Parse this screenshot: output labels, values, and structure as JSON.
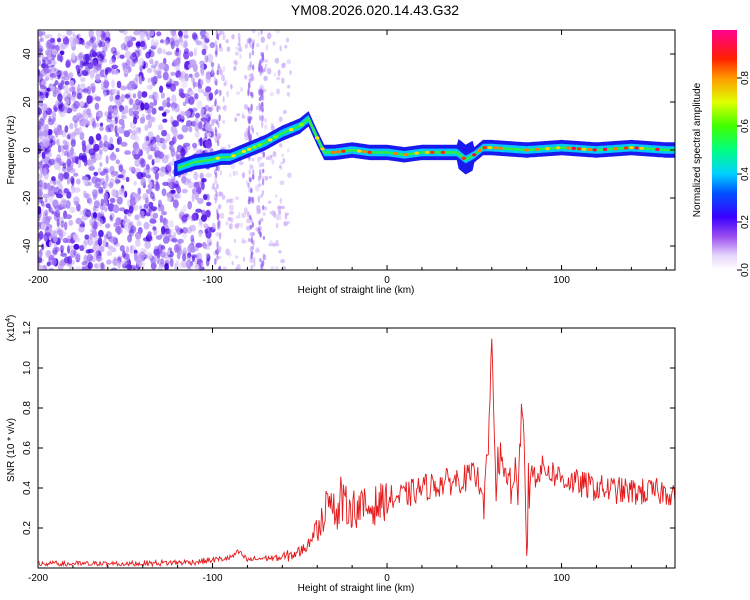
{
  "title": "YM08.2026.020.14.43.G32",
  "chart_data": [
    {
      "type": "heatmap",
      "name": "spectrogram",
      "xlabel": "Height of straight line (km)",
      "ylabel": "Frequency (Hz)",
      "xlim": [
        -200,
        165
      ],
      "ylim": [
        -50,
        50
      ],
      "x_ticks": [
        -200,
        -100,
        0,
        100
      ],
      "x_tick_labels": [
        "-200",
        "-100",
        "0",
        "100"
      ],
      "y_ticks": [
        -40,
        -20,
        0,
        20,
        40
      ],
      "y_tick_labels": [
        "-40",
        "-20",
        "0",
        "20",
        "40"
      ],
      "colorbar": {
        "label": "Normalized spectral amplitude",
        "range": [
          0,
          1
        ],
        "ticks": [
          0.0,
          0.2,
          0.4,
          0.6,
          0.8
        ],
        "tick_labels": [
          "0.0",
          "0.2",
          "0.4",
          "0.6",
          "0.8"
        ]
      },
      "ridge": {
        "x": [
          -122,
          -110,
          -100,
          -95,
          -90,
          -80,
          -70,
          -60,
          -50,
          -45,
          -40,
          -36,
          -30,
          -20,
          -10,
          0,
          10,
          20,
          30,
          40,
          45,
          50,
          55,
          60,
          80,
          100,
          120,
          140,
          160
        ],
        "freq": [
          -8,
          -5,
          -4,
          -3,
          -3,
          0,
          3,
          7,
          10,
          13,
          5,
          -1,
          -1,
          0,
          -1,
          -1,
          -2,
          -1,
          -1,
          -1,
          -4,
          -2,
          1,
          1,
          0,
          1,
          0,
          1,
          0
        ]
      }
    },
    {
      "type": "line",
      "name": "snr",
      "xlabel": "Height of straight line (km)",
      "ylabel": "SNR (10 * v/v)",
      "y_multiplier": "(x10",
      "y_multiplier_exp": "4",
      "y_multiplier_close": ")",
      "xlim": [
        -200,
        165
      ],
      "ylim": [
        0,
        1.2
      ],
      "x_ticks": [
        -200,
        -100,
        0,
        100
      ],
      "x_tick_labels": [
        "-200",
        "-100",
        "0",
        "100"
      ],
      "y_ticks": [
        0.2,
        0.4,
        0.6,
        0.8,
        1.0,
        1.2
      ],
      "y_tick_labels": [
        "0.2",
        "0.4",
        "0.6",
        "0.8",
        "1.0",
        "1.2"
      ],
      "series": [
        {
          "name": "SNR",
          "color": "#e41a1c",
          "x": [
            -200,
            -150,
            -110,
            -100,
            -90,
            -85,
            -80,
            -70,
            -60,
            -50,
            -45,
            -40,
            -35,
            -30,
            -25,
            -20,
            -10,
            0,
            10,
            20,
            30,
            40,
            50,
            55,
            58,
            60,
            62,
            65,
            70,
            75,
            78,
            80,
            82,
            90,
            100,
            110,
            120,
            140,
            160,
            165
          ],
          "y": [
            0.02,
            0.02,
            0.03,
            0.04,
            0.05,
            0.08,
            0.04,
            0.05,
            0.05,
            0.08,
            0.12,
            0.22,
            0.3,
            0.28,
            0.32,
            0.3,
            0.3,
            0.34,
            0.36,
            0.4,
            0.42,
            0.44,
            0.46,
            0.42,
            0.55,
            1.2,
            0.3,
            0.5,
            0.45,
            0.45,
            0.8,
            0.02,
            0.45,
            0.5,
            0.45,
            0.42,
            0.4,
            0.38,
            0.38,
            0.38
          ]
        }
      ]
    }
  ]
}
